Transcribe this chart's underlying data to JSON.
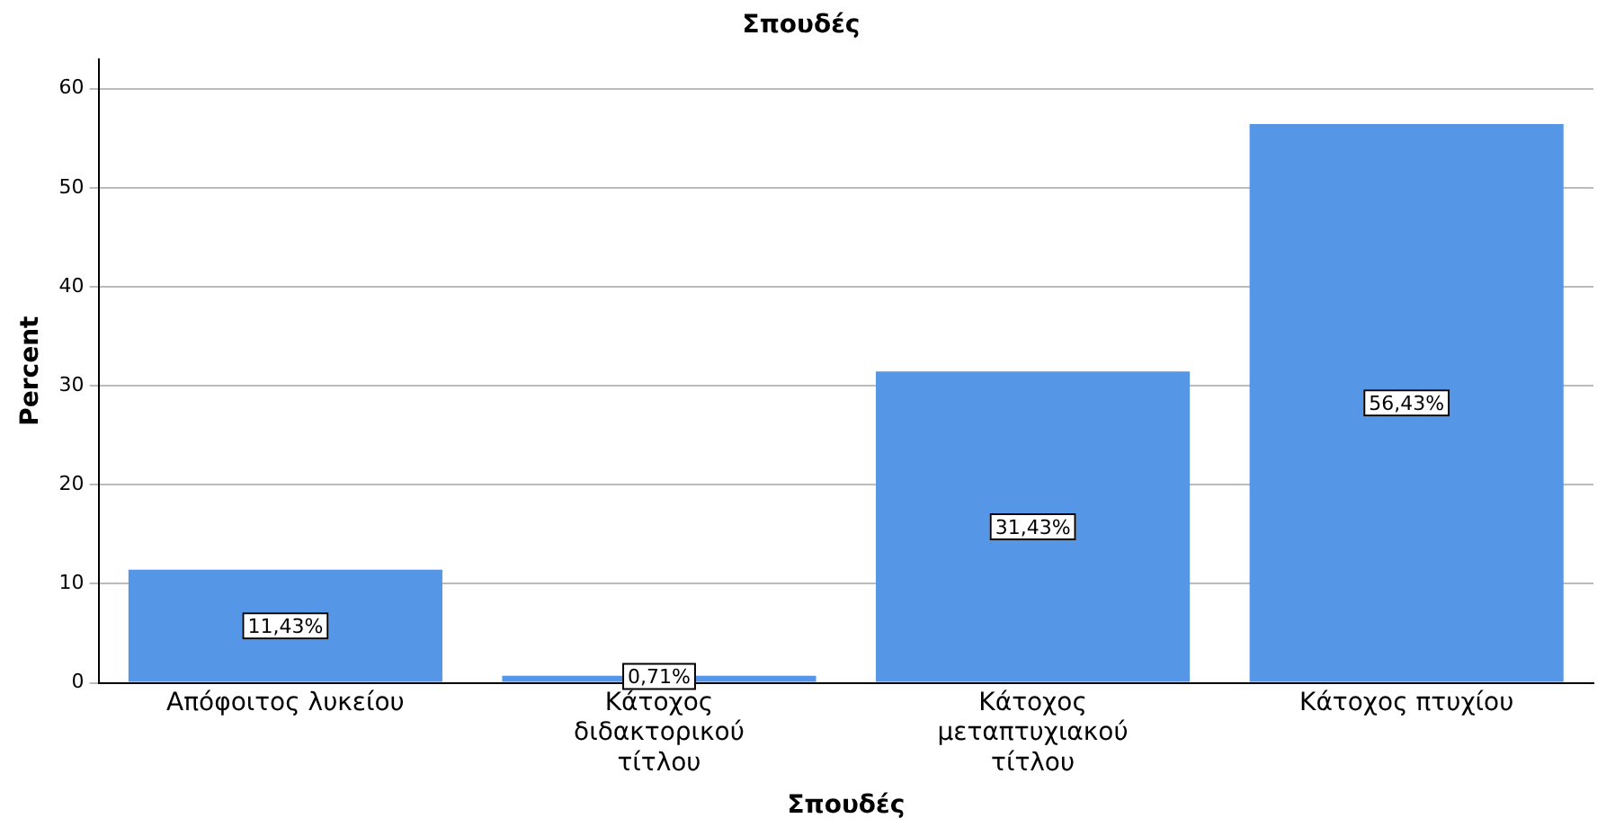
{
  "chart_data": {
    "type": "bar",
    "title": "Σπουδές",
    "xlabel": "Σπουδές",
    "ylabel": "Percent",
    "categories": [
      "Απόφοιτος λυκείου",
      "Κάτοχος διδακτορικού τίτλου",
      "Κάτοχος μεταπτυχιακού τίτλου",
      "Κάτοχος πτυχίου"
    ],
    "values": [
      11.43,
      0.71,
      31.43,
      56.43
    ],
    "value_labels": [
      "11,43%",
      "0,71%",
      "31,43%",
      "56,43%"
    ],
    "color": "#5596e6",
    "ylim": [
      0,
      63
    ],
    "yticks": [
      0,
      10,
      20,
      30,
      40,
      50,
      60
    ],
    "grid": "y",
    "legend": false
  }
}
